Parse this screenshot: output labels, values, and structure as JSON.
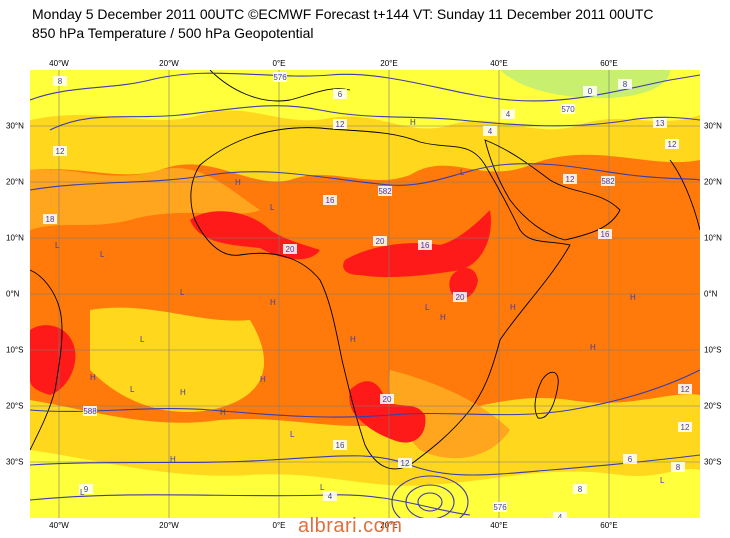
{
  "title": {
    "line1": "Monday 5 December 2011 00UTC ©ECMWF Forecast t+144 VT: Sunday 11 December 2011 00UTC",
    "line2": "850 hPa Temperature / 500 hPa Geopotential"
  },
  "axes": {
    "lon_top": [
      "40°W",
      "20°W",
      "0°E",
      "20°E",
      "40°E",
      "60°E"
    ],
    "lon_bottom": [
      "40°W",
      "20°W",
      "0°E",
      "20°E",
      "40°E",
      "60°E"
    ],
    "lat_left": [
      "30°N",
      "20°N",
      "10°N",
      "0°N",
      "10°S",
      "20°S",
      "30°S"
    ],
    "lat_right": [
      "30°N",
      "20°N",
      "10°N",
      "0°N",
      "10°S",
      "20°S",
      "30°S"
    ]
  },
  "colors": {
    "cold": "#c8f06e",
    "cool": "#ffff3c",
    "mild": "#ffd81e",
    "warm": "#ffa51e",
    "hot": "#ff7a0a",
    "very_hot": "#ff1a1a",
    "contour": "#3c3caa",
    "coast": "#000000",
    "grid": "#7a7a7a"
  },
  "contour_labels": [
    "8",
    "576",
    "6",
    "8",
    "12",
    "4",
    "4",
    "570",
    "0",
    "13",
    "12",
    "582",
    "12",
    "16",
    "18",
    "20",
    "20",
    "16",
    "20",
    "12",
    "20",
    "588",
    "16",
    "12",
    "8",
    "6",
    "4",
    "576",
    "4",
    "12",
    "8",
    "9",
    "16",
    "12",
    "582"
  ],
  "markers": [
    "H",
    "L"
  ],
  "watermark": "albrari.com"
}
